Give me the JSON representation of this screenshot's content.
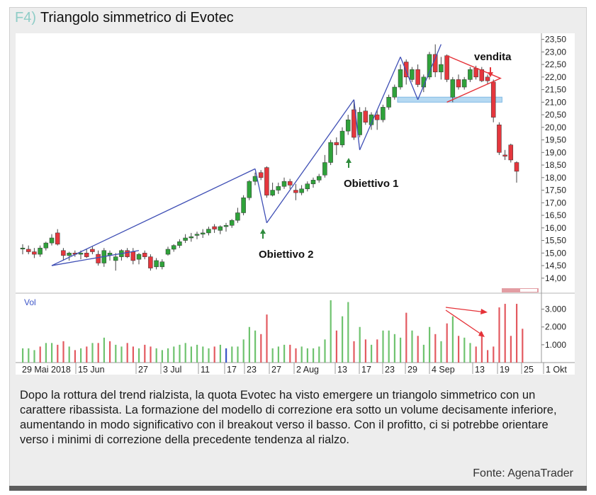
{
  "figure": {
    "tag": "F4)",
    "title": "Triangolo simmetrico di Evotec",
    "caption": "Dopo la rottura del trend rialzista, la quota Evotec ha visto emergere un triangolo simmetrico con un carattere ribassista. La formazione del modello di correzione era sotto un volume decisamente inferiore, aumentando in modo significativo con il breakout verso il basso. Con il profitto, ci si potrebbe orientare verso i minimi di correzione della precedente tendenza al rialzo.",
    "source": "Fonte: AgenaTrader"
  },
  "chart_data": {
    "type": "candlestick",
    "annotations": {
      "target2": "Obiettivo 2",
      "target1": "Obiettivo 1",
      "sell": "vendita"
    },
    "price_axis": {
      "ylim": [
        13.6,
        23.6
      ],
      "ticks": [
        "14,00",
        "14,50",
        "15,00",
        "15,50",
        "16,00",
        "16,50",
        "17,00",
        "17,50",
        "18,00",
        "18,50",
        "19,00",
        "19,50",
        "20,00",
        "20,50",
        "21,00",
        "21,50",
        "22,00",
        "22,50",
        "23,00",
        "23,50"
      ]
    },
    "volume_axis": {
      "label": "Vol",
      "ylim": [
        0,
        3700
      ],
      "ticks": [
        "1.000",
        "2.000",
        "3.000"
      ]
    },
    "x_axis": {
      "ticks": [
        "29 Mai 2018",
        "15 Jun",
        "27",
        "3 Jul",
        "11",
        "17",
        "23",
        "27",
        "2 Aug",
        "13",
        "17",
        "23",
        "29",
        "4 Sep",
        "13",
        "19",
        "25",
        "1 Okt"
      ]
    },
    "candles": [
      {
        "o": 15.2,
        "h": 15.35,
        "l": 14.95,
        "c": 15.2
      },
      {
        "o": 15.15,
        "h": 15.3,
        "l": 14.95,
        "c": 15.05
      },
      {
        "o": 15.05,
        "h": 15.2,
        "l": 14.8,
        "c": 14.95
      },
      {
        "o": 14.95,
        "h": 15.3,
        "l": 14.85,
        "c": 15.2
      },
      {
        "o": 15.2,
        "h": 15.45,
        "l": 15.1,
        "c": 15.4
      },
      {
        "o": 15.4,
        "h": 15.75,
        "l": 15.3,
        "c": 15.6
      },
      {
        "o": 15.8,
        "h": 15.95,
        "l": 15.3,
        "c": 15.35
      },
      {
        "o": 15.1,
        "h": 15.2,
        "l": 14.7,
        "c": 14.9
      },
      {
        "o": 14.9,
        "h": 15.05,
        "l": 14.7,
        "c": 15.0
      },
      {
        "o": 15.0,
        "h": 15.1,
        "l": 14.85,
        "c": 14.95
      },
      {
        "o": 14.95,
        "h": 15.1,
        "l": 14.75,
        "c": 15.0
      },
      {
        "o": 15.0,
        "h": 15.15,
        "l": 14.8,
        "c": 14.85
      },
      {
        "o": 15.15,
        "h": 15.25,
        "l": 14.95,
        "c": 15.05
      },
      {
        "o": 14.95,
        "h": 15.1,
        "l": 14.5,
        "c": 14.6
      },
      {
        "o": 14.6,
        "h": 15.2,
        "l": 14.45,
        "c": 15.1
      },
      {
        "o": 14.9,
        "h": 15.1,
        "l": 14.7,
        "c": 15.0
      },
      {
        "o": 14.7,
        "h": 15.0,
        "l": 14.3,
        "c": 14.85
      },
      {
        "o": 14.85,
        "h": 15.15,
        "l": 14.7,
        "c": 15.1
      },
      {
        "o": 15.1,
        "h": 15.2,
        "l": 14.8,
        "c": 14.85
      },
      {
        "o": 15.05,
        "h": 15.2,
        "l": 14.55,
        "c": 14.7
      },
      {
        "o": 14.75,
        "h": 15.0,
        "l": 14.55,
        "c": 14.95
      },
      {
        "o": 15.0,
        "h": 15.1,
        "l": 14.75,
        "c": 14.85
      },
      {
        "o": 14.85,
        "h": 14.95,
        "l": 14.3,
        "c": 14.4
      },
      {
        "o": 14.45,
        "h": 14.8,
        "l": 14.35,
        "c": 14.7
      },
      {
        "o": 14.45,
        "h": 14.75,
        "l": 14.35,
        "c": 14.65
      },
      {
        "o": 14.95,
        "h": 15.25,
        "l": 14.9,
        "c": 15.15
      },
      {
        "o": 15.15,
        "h": 15.35,
        "l": 15.05,
        "c": 15.3
      },
      {
        "o": 15.3,
        "h": 15.55,
        "l": 15.2,
        "c": 15.45
      },
      {
        "o": 15.5,
        "h": 15.75,
        "l": 15.4,
        "c": 15.6
      },
      {
        "o": 15.6,
        "h": 15.8,
        "l": 15.45,
        "c": 15.65
      },
      {
        "o": 15.7,
        "h": 15.85,
        "l": 15.55,
        "c": 15.75
      },
      {
        "o": 15.75,
        "h": 15.95,
        "l": 15.6,
        "c": 15.8
      },
      {
        "o": 15.8,
        "h": 16.05,
        "l": 15.7,
        "c": 15.95
      },
      {
        "o": 16.05,
        "h": 16.15,
        "l": 15.8,
        "c": 15.95
      },
      {
        "o": 15.9,
        "h": 16.1,
        "l": 15.75,
        "c": 16.05
      },
      {
        "o": 16.05,
        "h": 16.2,
        "l": 15.85,
        "c": 16.1
      },
      {
        "o": 16.1,
        "h": 16.35,
        "l": 16.0,
        "c": 16.3
      },
      {
        "o": 16.3,
        "h": 16.8,
        "l": 16.2,
        "c": 16.6
      },
      {
        "o": 16.6,
        "h": 17.3,
        "l": 16.5,
        "c": 17.2
      },
      {
        "o": 17.2,
        "h": 17.9,
        "l": 17.1,
        "c": 17.85
      },
      {
        "o": 17.85,
        "h": 18.2,
        "l": 17.7,
        "c": 18.05
      },
      {
        "o": 18.2,
        "h": 18.3,
        "l": 17.9,
        "c": 18.0
      },
      {
        "o": 18.4,
        "h": 18.45,
        "l": 17.2,
        "c": 17.3
      },
      {
        "o": 17.3,
        "h": 17.8,
        "l": 17.25,
        "c": 17.5
      },
      {
        "o": 17.5,
        "h": 17.8,
        "l": 17.35,
        "c": 17.65
      },
      {
        "o": 17.65,
        "h": 18.0,
        "l": 17.55,
        "c": 17.85
      },
      {
        "o": 17.85,
        "h": 17.95,
        "l": 17.55,
        "c": 17.7
      },
      {
        "o": 17.5,
        "h": 17.75,
        "l": 17.1,
        "c": 17.4
      },
      {
        "o": 17.4,
        "h": 17.7,
        "l": 17.3,
        "c": 17.55
      },
      {
        "o": 17.55,
        "h": 17.85,
        "l": 17.45,
        "c": 17.75
      },
      {
        "o": 17.75,
        "h": 18.0,
        "l": 17.6,
        "c": 17.9
      },
      {
        "o": 17.9,
        "h": 18.15,
        "l": 17.8,
        "c": 18.05
      },
      {
        "o": 18.1,
        "h": 18.9,
        "l": 18.0,
        "c": 18.6
      },
      {
        "o": 18.6,
        "h": 19.5,
        "l": 18.5,
        "c": 19.4
      },
      {
        "o": 19.4,
        "h": 19.6,
        "l": 18.9,
        "c": 19.3
      },
      {
        "o": 19.3,
        "h": 20.0,
        "l": 19.2,
        "c": 19.85
      },
      {
        "o": 19.85,
        "h": 20.5,
        "l": 19.7,
        "c": 20.3
      },
      {
        "o": 20.7,
        "h": 21.1,
        "l": 19.5,
        "c": 19.6
      },
      {
        "o": 19.7,
        "h": 20.8,
        "l": 19.6,
        "c": 20.6
      },
      {
        "o": 20.65,
        "h": 20.8,
        "l": 20.1,
        "c": 20.2
      },
      {
        "o": 20.1,
        "h": 20.6,
        "l": 19.9,
        "c": 20.5
      },
      {
        "o": 20.5,
        "h": 20.7,
        "l": 19.9,
        "c": 20.3
      },
      {
        "o": 20.3,
        "h": 20.9,
        "l": 20.2,
        "c": 20.8
      },
      {
        "o": 20.8,
        "h": 21.3,
        "l": 20.7,
        "c": 21.2
      },
      {
        "o": 21.2,
        "h": 21.7,
        "l": 21.1,
        "c": 21.6
      },
      {
        "o": 21.6,
        "h": 22.5,
        "l": 21.5,
        "c": 22.3
      },
      {
        "o": 22.6,
        "h": 22.7,
        "l": 21.7,
        "c": 22.0
      },
      {
        "o": 21.9,
        "h": 22.4,
        "l": 21.8,
        "c": 22.3
      },
      {
        "o": 22.3,
        "h": 22.5,
        "l": 21.6,
        "c": 21.7
      },
      {
        "o": 21.6,
        "h": 22.1,
        "l": 21.4,
        "c": 22.0
      },
      {
        "o": 22.0,
        "h": 23.0,
        "l": 21.9,
        "c": 22.9
      },
      {
        "o": 22.9,
        "h": 23.3,
        "l": 22.0,
        "c": 22.2
      },
      {
        "o": 22.2,
        "h": 22.8,
        "l": 21.9,
        "c": 22.5
      },
      {
        "o": 22.85,
        "h": 22.9,
        "l": 21.8,
        "c": 21.9
      },
      {
        "o": 21.2,
        "h": 22.0,
        "l": 21.0,
        "c": 21.9
      },
      {
        "o": 21.9,
        "h": 22.1,
        "l": 21.5,
        "c": 21.6
      },
      {
        "o": 21.6,
        "h": 22.0,
        "l": 21.5,
        "c": 21.9
      },
      {
        "o": 21.9,
        "h": 22.4,
        "l": 21.8,
        "c": 22.3
      },
      {
        "o": 22.35,
        "h": 22.45,
        "l": 21.9,
        "c": 22.0
      },
      {
        "o": 22.3,
        "h": 22.4,
        "l": 21.8,
        "c": 21.85
      },
      {
        "o": 22.0,
        "h": 22.1,
        "l": 21.7,
        "c": 21.85
      },
      {
        "o": 21.8,
        "h": 21.9,
        "l": 20.2,
        "c": 20.4
      },
      {
        "o": 20.1,
        "h": 20.2,
        "l": 18.9,
        "c": 19.0
      },
      {
        "o": 18.9,
        "h": 19.1,
        "l": 18.7,
        "c": 18.85
      },
      {
        "o": 19.3,
        "h": 19.35,
        "l": 18.6,
        "c": 18.7
      },
      {
        "o": 18.6,
        "h": 18.65,
        "l": 17.8,
        "c": 18.25
      }
    ],
    "volume": [
      800,
      800,
      700,
      900,
      1100,
      1100,
      1000,
      1200,
      900,
      700,
      800,
      900,
      1100,
      1100,
      1400,
      1200,
      1000,
      900,
      1100,
      900,
      800,
      1000,
      900,
      800,
      700,
      800,
      900,
      1000,
      1100,
      900,
      1000,
      900,
      800,
      900,
      1000,
      800,
      900,
      900,
      1300,
      2000,
      1800,
      1600,
      2700,
      800,
      900,
      1000,
      1000,
      800,
      900,
      800,
      800,
      900,
      1300,
      3500,
      1800,
      2600,
      3400,
      1200,
      2000,
      1300,
      1000,
      1300,
      1800,
      1800,
      1600,
      1400,
      2800,
      1800,
      1500,
      1000,
      2000,
      1600,
      1200,
      2200,
      2600,
      1500,
      1400,
      1100,
      900,
      1700,
      700,
      900,
      3100,
      3300,
      1500,
      3300,
      1900
    ],
    "volume_colors": [
      "g",
      "g",
      "g",
      "r",
      "g",
      "g",
      "r",
      "r",
      "g",
      "r",
      "g",
      "r",
      "g",
      "r",
      "g",
      "r",
      "g",
      "g",
      "r",
      "r",
      "g",
      "r",
      "r",
      "g",
      "g",
      "g",
      "g",
      "g",
      "g",
      "g",
      "g",
      "g",
      "g",
      "r",
      "g",
      "g",
      "g",
      "g",
      "g",
      "g",
      "g",
      "r",
      "r",
      "g",
      "g",
      "g",
      "r",
      "r",
      "g",
      "g",
      "g",
      "g",
      "g",
      "g",
      "r",
      "g",
      "g",
      "r",
      "g",
      "r",
      "g",
      "r",
      "g",
      "g",
      "g",
      "g",
      "r",
      "g",
      "r",
      "g",
      "g",
      "r",
      "g",
      "r",
      "g",
      "r",
      "g",
      "g",
      "r",
      "r",
      "r",
      "r",
      "r",
      "r",
      "r",
      "r",
      "r"
    ],
    "trendlines": [
      {
        "from": [
          5,
          14.5
        ],
        "to": [
          40,
          18.35
        ]
      },
      {
        "from": [
          5,
          14.5
        ],
        "to": [
          20,
          15.1
        ]
      },
      {
        "from": [
          40,
          18.35
        ],
        "to": [
          42,
          16.2
        ]
      },
      {
        "from": [
          42,
          16.2
        ],
        "to": [
          57,
          21.1
        ]
      },
      {
        "from": [
          57,
          21.1
        ],
        "to": [
          58,
          19.1
        ]
      },
      {
        "from": [
          58,
          19.1
        ],
        "to": [
          65,
          22.8
        ]
      },
      {
        "from": [
          65,
          22.8
        ],
        "to": [
          68,
          21.1
        ]
      },
      {
        "from": [
          68,
          21.1
        ],
        "to": [
          72,
          23.3
        ]
      }
    ],
    "triangle": {
      "from_idx": 73,
      "to_idx": 81,
      "upper_start": 22.85,
      "lower_start": 21.0,
      "apex": 21.95
    },
    "support_zone": {
      "from_idx": 65,
      "to_idx": 82,
      "low": 21.0,
      "high": 21.2
    }
  }
}
